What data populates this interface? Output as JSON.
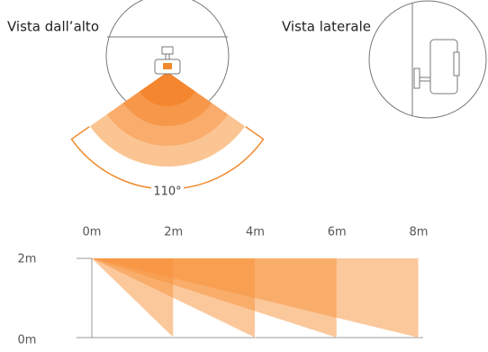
{
  "top_view": {
    "title": "Vista dall’alto",
    "angle_label": "110°"
  },
  "side_view": {
    "title": "Vista laterale"
  },
  "range_chart": {
    "distances": [
      "0m",
      "2m",
      "4m",
      "6m",
      "8m"
    ],
    "heights": [
      "2m",
      "0m"
    ]
  }
}
